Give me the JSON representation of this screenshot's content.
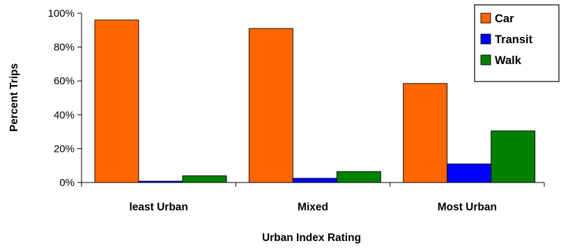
{
  "chart_data": {
    "type": "bar",
    "title": "",
    "xlabel": "Urban Index Rating",
    "ylabel": "Percent Trips",
    "categories": [
      "least Urban",
      "Mixed",
      "Most Urban"
    ],
    "series": [
      {
        "name": "Car",
        "color": "#FF6600",
        "values": [
          96,
          91,
          58.5
        ]
      },
      {
        "name": "Transit",
        "color": "#0000FF",
        "values": [
          0.8,
          2.5,
          11
        ]
      },
      {
        "name": "Walk",
        "color": "#008000",
        "values": [
          4,
          6.5,
          30.5
        ]
      }
    ],
    "ylim": [
      0,
      100
    ],
    "yticks": [
      0,
      20,
      40,
      60,
      80,
      100
    ],
    "ytick_labels": [
      "0%",
      "20%",
      "40%",
      "60%",
      "80%",
      "100%"
    ],
    "grid": false,
    "legend_position": "top-right"
  }
}
